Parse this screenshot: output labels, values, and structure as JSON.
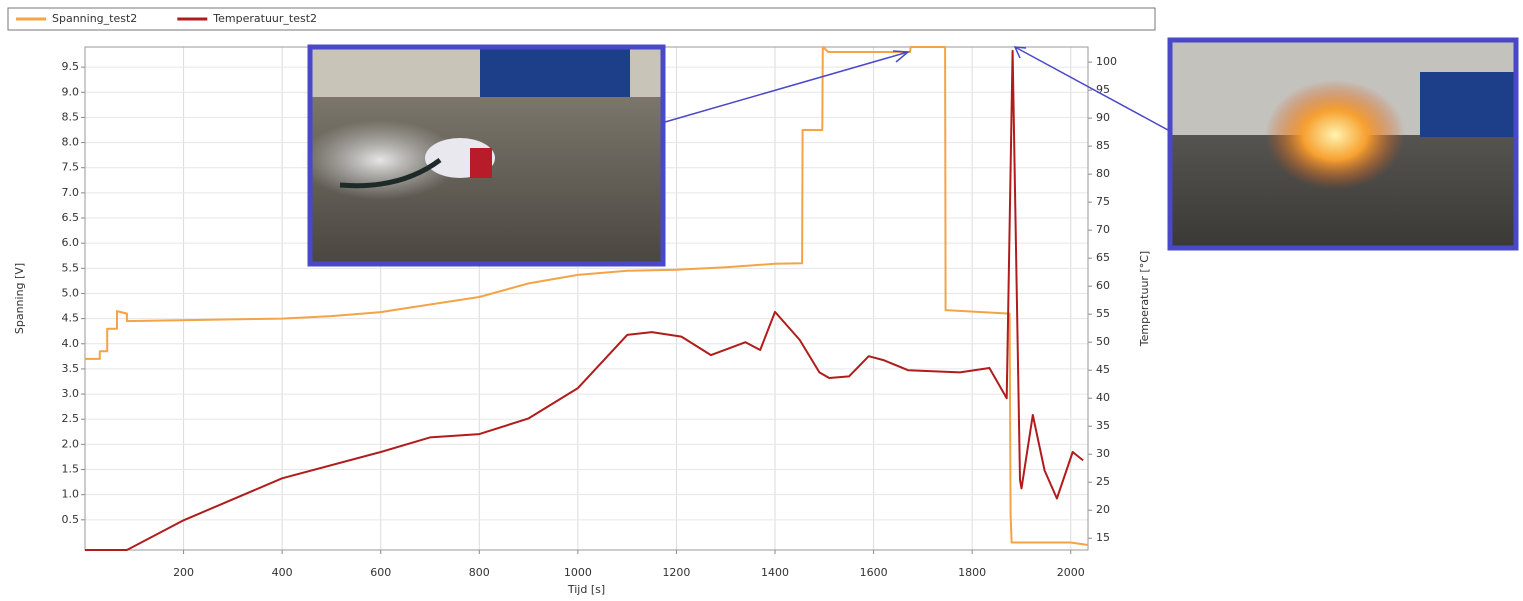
{
  "chart_data": {
    "type": "line",
    "xlabel": "Tijd [s]",
    "ylabel": "Spanning [V]",
    "y2label": "Temperatuur [°C]",
    "xlim": [
      0,
      2035
    ],
    "xticks": [
      200,
      400,
      600,
      800,
      1000,
      1200,
      1400,
      1600,
      1800,
      2000
    ],
    "ylim": [
      -0.1,
      9.9
    ],
    "yticks": [
      0.5,
      {
        "value": 1,
        "label": "1.0"
      },
      1.5,
      {
        "value": 2,
        "label": "2.0"
      },
      2.5,
      {
        "value": 3,
        "label": "3.0"
      },
      3.5,
      {
        "value": 4,
        "label": "4.0"
      },
      4.5,
      {
        "value": 5,
        "label": "5.0"
      },
      5.5,
      {
        "value": 6,
        "label": "6.0"
      },
      6.5,
      {
        "value": 7,
        "label": "7.0"
      },
      7.5,
      {
        "value": 8,
        "label": "8.0"
      },
      8.5,
      {
        "value": 9,
        "label": "9.0"
      },
      9.5
    ],
    "y2lim": [
      12.9,
      102.7
    ],
    "y2ticks": [
      15,
      20,
      25,
      30,
      35,
      40,
      45,
      50,
      55,
      60,
      65,
      70,
      75,
      80,
      85,
      90,
      95,
      100
    ],
    "grid": true,
    "series": [
      {
        "name": "Spanning_test2",
        "color": "#f4a347",
        "x": [
          0,
          30,
          30,
          45,
          45,
          65,
          65,
          85,
          85,
          400,
          500,
          600,
          700,
          800,
          900,
          1000,
          1100,
          1200,
          1300,
          1400,
          1455,
          1456,
          1496,
          1497,
          1508,
          1674,
          1675,
          1745,
          1746,
          1876,
          1878,
          1880,
          2000,
          2035
        ],
        "values": [
          3.7,
          3.7,
          3.85,
          3.85,
          4.3,
          4.3,
          4.65,
          4.6,
          4.45,
          4.5,
          4.55,
          4.63,
          4.78,
          4.93,
          5.2,
          5.37,
          5.45,
          5.47,
          5.52,
          5.59,
          5.6,
          8.25,
          8.25,
          9.9,
          9.8,
          9.8,
          9.9,
          9.9,
          4.67,
          4.6,
          0.6,
          0.05,
          0.05,
          0
        ]
      },
      {
        "name": "Temperatuur_test2",
        "color": "#b01c1c",
        "axis": "y2",
        "x": [
          0,
          85,
          200,
          400,
          600,
          700,
          800,
          900,
          1000,
          1100,
          1150,
          1210,
          1270,
          1340,
          1370,
          1400,
          1450,
          1490,
          1510,
          1550,
          1590,
          1620,
          1670,
          1775,
          1835,
          1870,
          1882,
          1897,
          1900,
          1923,
          1947,
          1972,
          2004,
          2025
        ],
        "values": [
          12.9,
          12.9,
          18.2,
          25.7,
          30.4,
          33.0,
          33.6,
          36.4,
          41.8,
          51.3,
          51.8,
          51,
          47.7,
          50,
          48.6,
          55.4,
          50.4,
          44.6,
          43.6,
          43.9,
          47.5,
          46.8,
          45,
          44.6,
          45.4,
          40,
          102,
          25.4,
          23.9,
          37,
          27.1,
          22.1,
          30.4,
          28.9
        ]
      }
    ]
  }
}
